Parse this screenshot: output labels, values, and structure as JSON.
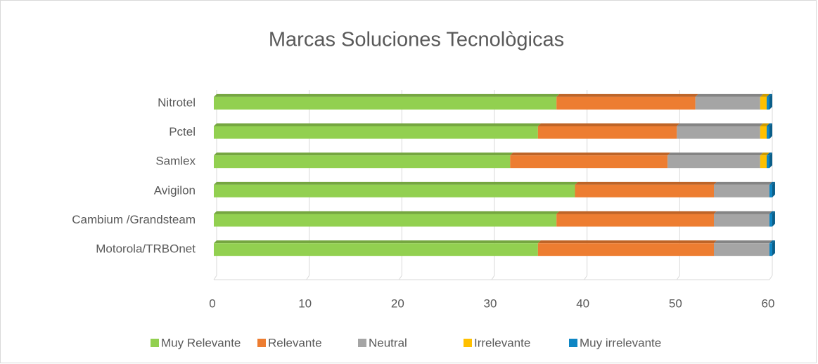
{
  "chart_data": {
    "type": "bar",
    "orientation": "horizontal",
    "stacked": true,
    "title": "Marcas Soluciones Tecnològicas",
    "categories": [
      "Motorola/TRBOnet",
      "Cambium /Grandsteam",
      "Avigilon",
      "Samlex",
      "Pctel",
      "Nitrotel"
    ],
    "series": [
      {
        "name": "Muy Relevante",
        "color": "#92d050",
        "values": [
          35,
          37,
          39,
          32,
          35,
          37
        ]
      },
      {
        "name": "Relevante",
        "color": "#ed7d31",
        "values": [
          19,
          17,
          15,
          17,
          15,
          15
        ]
      },
      {
        "name": "Neutral",
        "color": "#a5a5a5",
        "values": [
          6,
          6,
          6,
          10,
          9,
          7
        ]
      },
      {
        "name": "Irrelevante",
        "color": "#ffc000",
        "values": [
          0,
          0,
          0,
          0.7,
          0.7,
          0.7
        ]
      },
      {
        "name": "Muy irrelevante",
        "color": "#0e86c4",
        "values": [
          0.3,
          0.3,
          0.3,
          0.3,
          0.3,
          0.3
        ]
      }
    ],
    "xlim": [
      0,
      60
    ],
    "xticks": [
      0,
      10,
      20,
      30,
      40,
      50,
      60
    ],
    "grid": true,
    "legend": "bottom"
  }
}
